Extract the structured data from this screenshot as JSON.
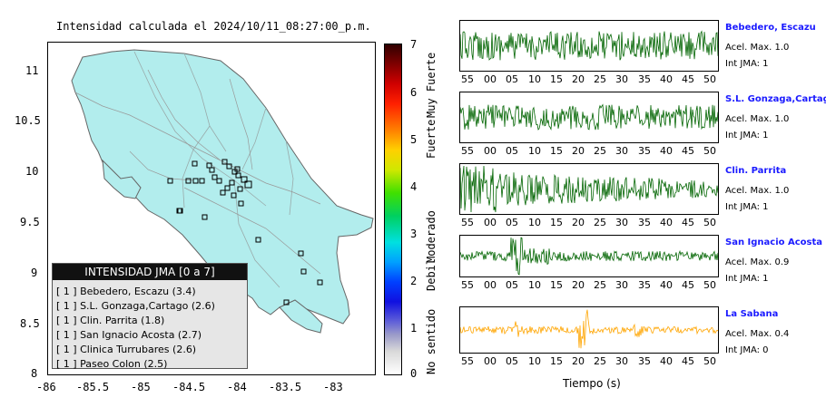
{
  "title": "Intensidad calculada el 2024/10/11_08:27:00_p.m.",
  "map": {
    "y_ticks": [
      "11",
      "10.5",
      "10",
      "9.5",
      "9",
      "8.5",
      "8"
    ],
    "x_ticks": [
      "-86",
      "-85.5",
      "-85",
      "-84.5",
      "-84",
      "-83.5",
      "-83"
    ]
  },
  "legend": {
    "title": "INTENSIDAD JMA [0 a 7]",
    "rows": [
      {
        "level": "[ 1 ]",
        "label": "Bebedero, Escazu (3.4)"
      },
      {
        "level": "[ 1 ]",
        "label": "S.L. Gonzaga,Cartago (2.6)"
      },
      {
        "level": "[ 1 ]",
        "label": "Clin. Parrita (1.8)"
      },
      {
        "level": "[ 1 ]",
        "label": "San Ignacio Acosta (2.7)"
      },
      {
        "level": "[ 1 ]",
        "label": "Clinica Turrubares (2.6)"
      },
      {
        "level": "[ 1 ]",
        "label": "Paseo Colon (2.5)"
      }
    ]
  },
  "colorbar": {
    "ticks": [
      "7",
      "6",
      "5",
      "4",
      "3",
      "2",
      "1",
      "0"
    ],
    "labels": [
      "Muy Fuerte",
      "Fuerte",
      "Moderado",
      "Debil",
      "No sentido"
    ]
  },
  "traces": [
    {
      "name": "Bebedero, Escazu",
      "acel": "Acel. Max. 1.0",
      "int": "Int JMA: 1",
      "color": "#006400",
      "ticks": [
        "55",
        "00",
        "05",
        "10",
        "15",
        "20",
        "25",
        "30",
        "35",
        "40",
        "45",
        "50"
      ]
    },
    {
      "name": "S.L. Gonzaga,Cartago",
      "acel": "Acel. Max. 1.0",
      "int": "Int JMA: 1",
      "color": "#006400",
      "ticks": [
        "55",
        "00",
        "05",
        "10",
        "15",
        "20",
        "25",
        "30",
        "35",
        "40",
        "45",
        "50"
      ]
    },
    {
      "name": "Clin. Parrita",
      "acel": "Acel. Max. 1.0",
      "int": "Int JMA: 1",
      "color": "#006400",
      "ticks": [
        "55",
        "00",
        "05",
        "10",
        "15",
        "20",
        "25",
        "30",
        "35",
        "40",
        "45",
        "50"
      ]
    },
    {
      "name": "San Ignacio Acosta",
      "acel": "Acel. Max. 0.9",
      "int": "Int JMA: 1",
      "color": "#006400",
      "ticks": [
        "55",
        "00",
        "05",
        "10",
        "15",
        "20",
        "25",
        "30",
        "35",
        "40",
        "45",
        "50"
      ]
    },
    {
      "name": "La Sabana",
      "acel": "Acel. Max. 0.4",
      "int": "Int JMA: 0",
      "color": "#ffa500",
      "ticks": [
        "55",
        "00",
        "05",
        "10",
        "15",
        "20",
        "25",
        "30",
        "35",
        "40",
        "45",
        "50"
      ]
    }
  ],
  "xlabel": "Tiempo (s)"
}
